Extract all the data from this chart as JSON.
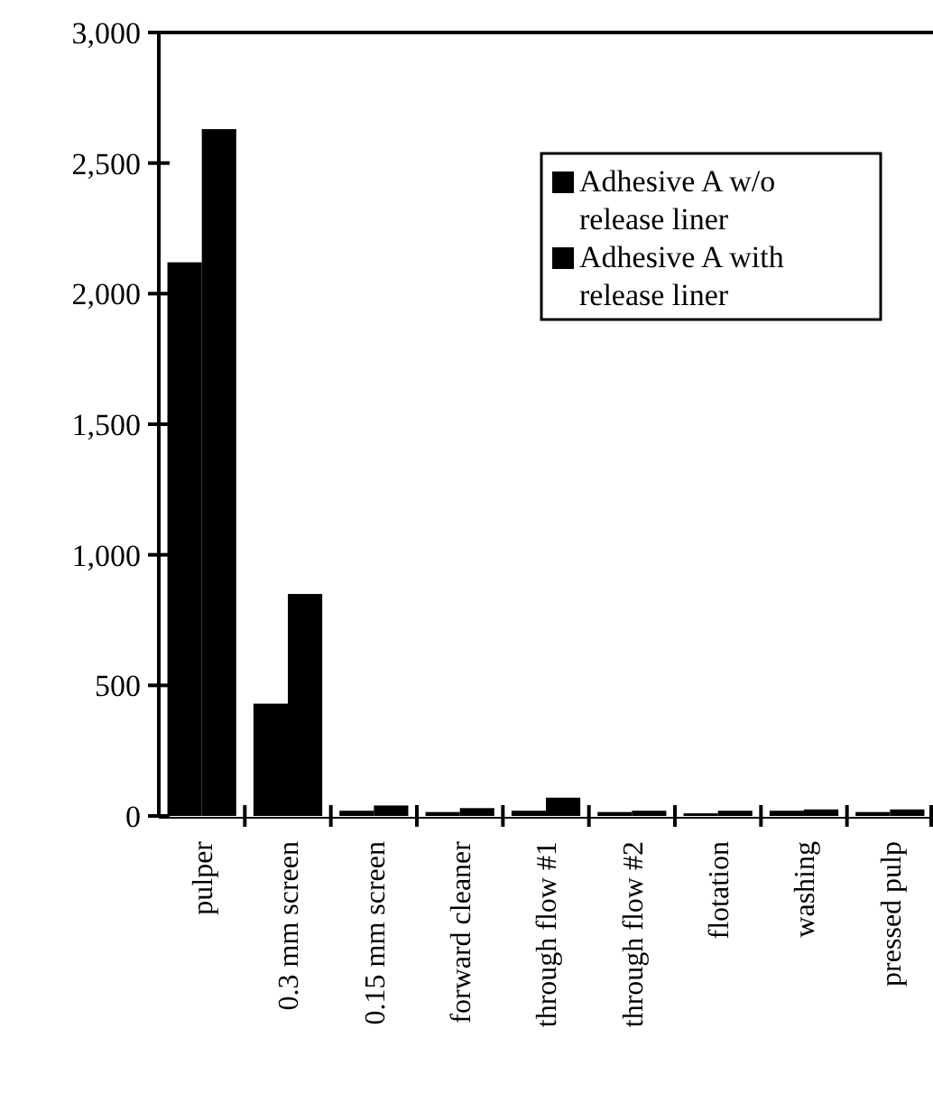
{
  "chart_data": {
    "type": "bar",
    "categories": [
      "pulper",
      "0.3 mm screen",
      "0.15 mm screen",
      "forward cleaner",
      "through flow #1",
      "through flow #2",
      "flotation",
      "washing",
      "pressed pulp"
    ],
    "series": [
      {
        "name": "Adhesive A w/o release liner",
        "color": "#000000",
        "values": [
          2120,
          430,
          20,
          15,
          20,
          15,
          10,
          20,
          15
        ]
      },
      {
        "name": "Adhesive A with release liner",
        "color": "#000000",
        "values": [
          2630,
          850,
          40,
          30,
          70,
          20,
          20,
          25,
          25
        ]
      }
    ],
    "ylim": [
      0,
      3000
    ],
    "yticks": [
      {
        "value": 0,
        "label": "0"
      },
      {
        "value": 500,
        "label": "500"
      },
      {
        "value": 1000,
        "label": "1,000"
      },
      {
        "value": 1500,
        "label": "1,500"
      },
      {
        "value": 2000,
        "label": "2,000"
      },
      {
        "value": 2500,
        "label": "2,500"
      },
      {
        "value": 3000,
        "label": "3,000"
      }
    ],
    "grid": false,
    "legend": "top right"
  }
}
